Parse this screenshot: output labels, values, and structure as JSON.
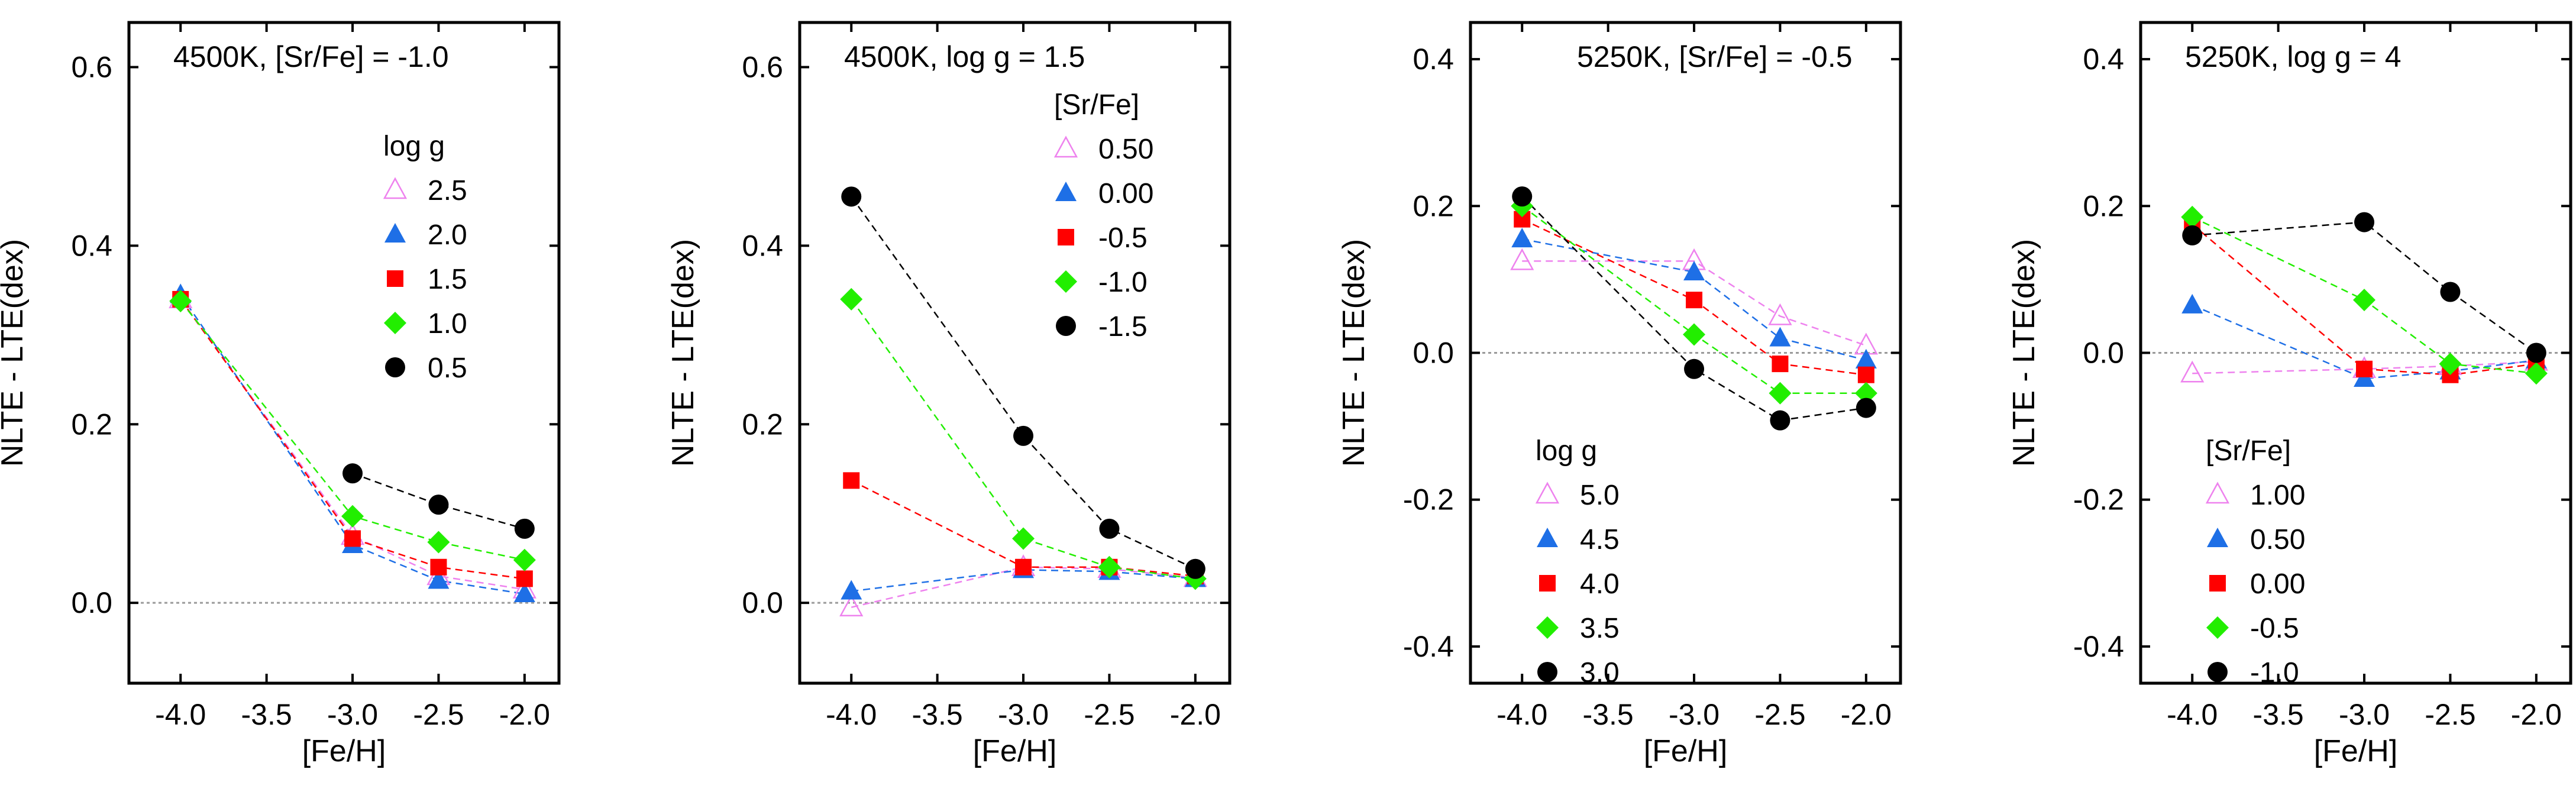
{
  "chart_data": [
    {
      "type": "line",
      "title": "4500K, [Sr/Fe] = -1.0",
      "xlabel": "[Fe/H]",
      "ylabel": "NLTE - LTE(dex)",
      "xlim": [
        -4.3,
        -1.8
      ],
      "ylim": [
        -0.09,
        0.65
      ],
      "x_ticks": [
        "-4.0",
        "-3.5",
        "-3.0",
        "-2.5",
        "-2.0"
      ],
      "y_ticks": [
        "0.0",
        "0.2",
        "0.4",
        "0.6"
      ],
      "legend_title": "log g",
      "legend_position": "upper-right",
      "zero_line": true,
      "series": [
        {
          "name": "2.5",
          "marker": "open-triangle",
          "color": "#ee82ee",
          "x": [
            -4.0,
            -3.0,
            -2.5,
            -2.0
          ],
          "y": [
            0.34,
            0.075,
            0.03,
            0.015
          ]
        },
        {
          "name": "2.0",
          "marker": "triangle",
          "color": "#1e6fe6",
          "x": [
            -4.0,
            -3.0,
            -2.5,
            -2.0
          ],
          "y": [
            0.345,
            0.065,
            0.025,
            0.01
          ]
        },
        {
          "name": "1.5",
          "marker": "square",
          "color": "#ff0000",
          "x": [
            -4.0,
            -3.0,
            -2.5,
            -2.0
          ],
          "y": [
            0.34,
            0.072,
            0.04,
            0.027
          ]
        },
        {
          "name": "1.0",
          "marker": "diamond",
          "color": "#22ee00",
          "x": [
            -4.0,
            -3.0,
            -2.5,
            -2.0
          ],
          "y": [
            0.338,
            0.097,
            0.068,
            0.048
          ]
        },
        {
          "name": "0.5",
          "marker": "circle",
          "color": "#000000",
          "x": [
            -3.0,
            -2.5,
            -2.0
          ],
          "y": [
            0.145,
            0.11,
            0.083
          ]
        }
      ]
    },
    {
      "type": "line",
      "title": "4500K, log g = 1.5",
      "xlabel": "[Fe/H]",
      "ylabel": "NLTE - LTE(dex)",
      "xlim": [
        -4.3,
        -1.8
      ],
      "ylim": [
        -0.09,
        0.65
      ],
      "x_ticks": [
        "-4.0",
        "-3.5",
        "-3.0",
        "-2.5",
        "-2.0"
      ],
      "y_ticks": [
        "0.0",
        "0.2",
        "0.4",
        "0.6"
      ],
      "legend_title": "[Sr/Fe]",
      "legend_position": "upper-right",
      "zero_line": true,
      "series": [
        {
          "name": "0.50",
          "marker": "open-triangle",
          "color": "#ee82ee",
          "x": [
            -4.0,
            -3.0,
            -2.5,
            -2.0
          ],
          "y": [
            -0.005,
            0.04,
            0.038,
            0.028
          ]
        },
        {
          "name": "0.00",
          "marker": "triangle",
          "color": "#1e6fe6",
          "x": [
            -4.0,
            -3.0,
            -2.5,
            -2.0
          ],
          "y": [
            0.013,
            0.037,
            0.035,
            0.027
          ]
        },
        {
          "name": "-0.5",
          "marker": "square",
          "color": "#ff0000",
          "x": [
            -4.0,
            -3.0,
            -2.5,
            -2.0
          ],
          "y": [
            0.137,
            0.04,
            0.04,
            0.03
          ]
        },
        {
          "name": "-1.0",
          "marker": "diamond",
          "color": "#22ee00",
          "x": [
            -4.0,
            -3.0,
            -2.5,
            -2.0
          ],
          "y": [
            0.34,
            0.072,
            0.04,
            0.027
          ]
        },
        {
          "name": "-1.5",
          "marker": "circle",
          "color": "#000000",
          "x": [
            -4.0,
            -3.0,
            -2.5,
            -2.0
          ],
          "y": [
            0.455,
            0.187,
            0.083,
            0.038
          ]
        }
      ]
    },
    {
      "type": "line",
      "title": "5250K, [Sr/Fe] = -0.5",
      "xlabel": "[Fe/H]",
      "ylabel": "NLTE - LTE(dex)",
      "xlim": [
        -4.3,
        -1.8
      ],
      "ylim": [
        -0.45,
        0.45
      ],
      "x_ticks": [
        "-4.0",
        "-3.5",
        "-3.0",
        "-2.5",
        "-2.0"
      ],
      "y_ticks": [
        "-0.4",
        "-0.2",
        "0.0",
        "0.2",
        "0.4"
      ],
      "legend_title": "log g",
      "legend_position": "lower-left",
      "zero_line": true,
      "series": [
        {
          "name": "5.0",
          "marker": "open-triangle",
          "color": "#ee82ee",
          "x": [
            -4.0,
            -3.0,
            -2.5,
            -2.0
          ],
          "y": [
            0.125,
            0.125,
            0.05,
            0.01
          ]
        },
        {
          "name": "4.5",
          "marker": "triangle",
          "color": "#1e6fe6",
          "x": [
            -4.0,
            -3.0,
            -2.5,
            -2.0
          ],
          "y": [
            0.155,
            0.11,
            0.02,
            -0.01
          ]
        },
        {
          "name": "4.0",
          "marker": "square",
          "color": "#ff0000",
          "x": [
            -4.0,
            -3.0,
            -2.5,
            -2.0
          ],
          "y": [
            0.182,
            0.072,
            -0.015,
            -0.03
          ]
        },
        {
          "name": "3.5",
          "marker": "diamond",
          "color": "#22ee00",
          "x": [
            -4.0,
            -3.0,
            -2.5,
            -2.0
          ],
          "y": [
            0.2,
            0.025,
            -0.055,
            -0.055
          ]
        },
        {
          "name": "3.0",
          "marker": "circle",
          "color": "#000000",
          "x": [
            -4.0,
            -3.0,
            -2.5,
            -2.0
          ],
          "y": [
            0.213,
            -0.022,
            -0.092,
            -0.075
          ]
        }
      ]
    },
    {
      "type": "line",
      "title": "5250K, log g = 4",
      "xlabel": "[Fe/H]",
      "ylabel": "NLTE - LTE(dex)",
      "xlim": [
        -4.3,
        -1.8
      ],
      "ylim": [
        -0.45,
        0.45
      ],
      "x_ticks": [
        "-4.0",
        "-3.5",
        "-3.0",
        "-2.5",
        "-2.0"
      ],
      "y_ticks": [
        "-0.4",
        "-0.2",
        "0.0",
        "0.2",
        "0.4"
      ],
      "legend_title": "[Sr/Fe]",
      "legend_position": "lower-left",
      "zero_line": true,
      "series": [
        {
          "name": "1.00",
          "marker": "open-triangle",
          "color": "#ee82ee",
          "x": [
            -4.0,
            -3.0,
            -2.5,
            -2.0
          ],
          "y": [
            -0.028,
            -0.022,
            -0.018,
            -0.012
          ]
        },
        {
          "name": "0.50",
          "marker": "triangle",
          "color": "#1e6fe6",
          "x": [
            -4.0,
            -3.0,
            -2.5,
            -2.0
          ],
          "y": [
            0.065,
            -0.035,
            -0.025,
            -0.01
          ]
        },
        {
          "name": "0.00",
          "marker": "square",
          "color": "#ff0000",
          "x": [
            -4.0,
            -3.0,
            -2.5,
            -2.0
          ],
          "y": [
            0.175,
            -0.022,
            -0.03,
            -0.015
          ]
        },
        {
          "name": "-0.5",
          "marker": "diamond",
          "color": "#22ee00",
          "x": [
            -4.0,
            -3.0,
            -2.5,
            -2.0
          ],
          "y": [
            0.185,
            0.072,
            -0.015,
            -0.028
          ]
        },
        {
          "name": "-1.0",
          "marker": "circle",
          "color": "#000000",
          "x": [
            -4.0,
            -3.0,
            -2.5,
            -2.0
          ],
          "y": [
            0.16,
            0.178,
            0.083,
            0.0
          ]
        }
      ]
    }
  ]
}
